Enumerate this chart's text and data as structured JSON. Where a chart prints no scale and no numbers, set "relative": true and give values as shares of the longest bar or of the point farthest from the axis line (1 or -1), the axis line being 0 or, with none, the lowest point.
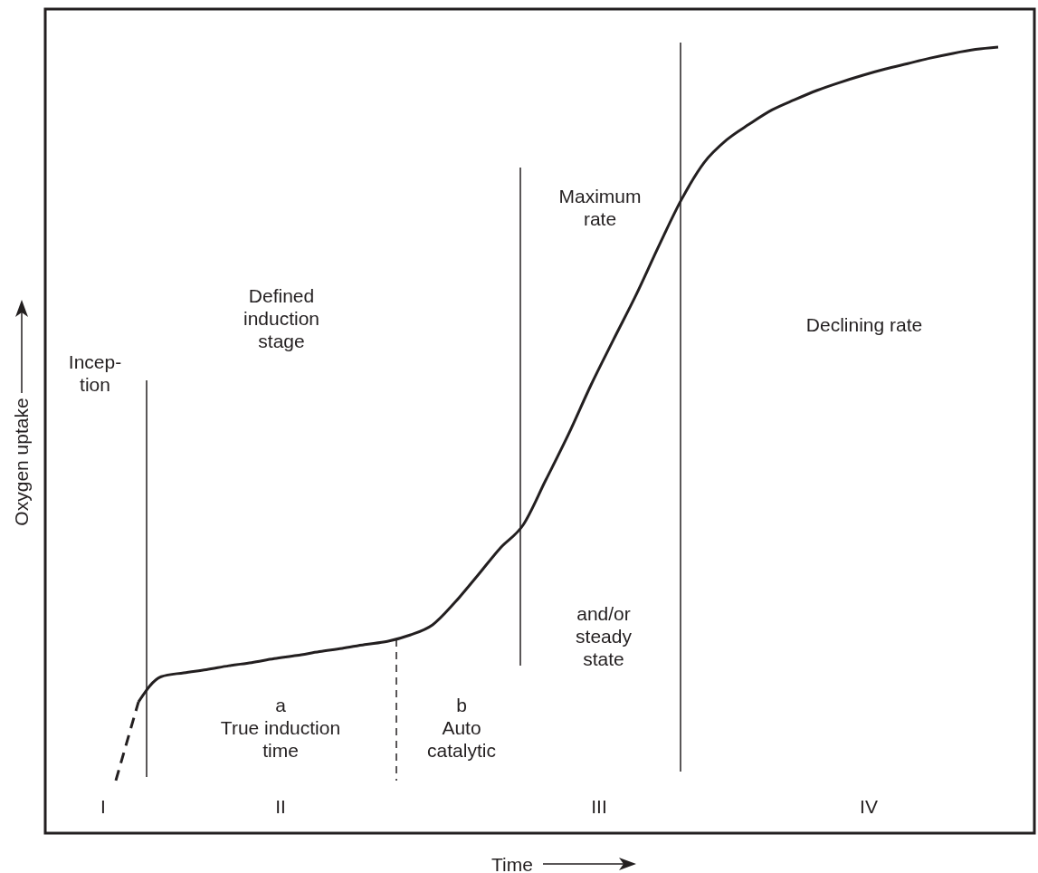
{
  "chart_data": {
    "type": "line",
    "relative": true,
    "xlabel": "Time",
    "ylabel": "Oxygen uptake",
    "categories": [
      null,
      null,
      null,
      null,
      null,
      null,
      null,
      null,
      null,
      null,
      null,
      null,
      null,
      null,
      null,
      null,
      null,
      null,
      null,
      null,
      null,
      null,
      null,
      null,
      null,
      null,
      null,
      null,
      null,
      null,
      null,
      null,
      null,
      null,
      null,
      null,
      null,
      null,
      null,
      null
    ],
    "series": [
      {
        "color": "#231f20",
        "line_style": "dashed",
        "values": [
          0.067,
          0.167,
          null,
          null,
          null,
          null,
          null,
          null,
          null,
          null,
          null,
          null,
          null,
          null,
          null,
          null,
          null,
          null,
          null,
          null,
          null,
          null,
          null,
          null,
          null,
          null,
          null,
          null,
          null,
          null,
          null,
          null,
          null,
          null,
          null,
          null,
          null,
          null,
          null,
          null
        ]
      },
      {
        "color": "#231f20",
        "line_style": "solid",
        "values": [
          null,
          0.167,
          0.199,
          0.204,
          0.208,
          0.213,
          0.217,
          0.222,
          0.226,
          0.231,
          0.235,
          0.24,
          0.244,
          0.252,
          0.265,
          0.294,
          0.328,
          0.363,
          0.392,
          0.449,
          0.507,
          0.57,
          0.628,
          0.685,
          0.747,
          0.806,
          0.853,
          0.882,
          0.902,
          0.92,
          0.933,
          0.945,
          0.955,
          0.964,
          0.972,
          0.979,
          0.986,
          0.992,
          0.997,
          1.0
        ]
      }
    ],
    "annotations": [
      "Incep-\ntion",
      "Defined\ninduction\nstage",
      "Maximum\nrate",
      "Declining rate",
      "and/or\nsteady\nstate",
      "a\nTrue induction\ntime",
      "b\nAuto\ncatalytic",
      "I",
      "II",
      "III",
      "IV"
    ]
  }
}
